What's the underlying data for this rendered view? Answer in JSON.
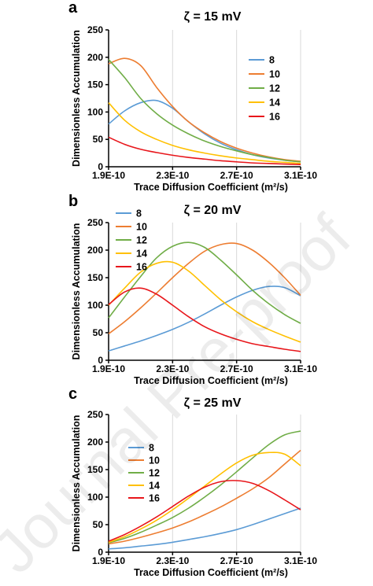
{
  "watermark": "Journal Pre-proof",
  "chart_data": [
    {
      "type": "line",
      "panel_label": "a",
      "title": "ζ = 15 mV",
      "xlabel": "Trace Diffusion Coefficient (m²/s)",
      "ylabel": "Dimensionless Accumulation",
      "xlim": [
        1.9e-10,
        3.1e-10
      ],
      "ylim": [
        0,
        250
      ],
      "xticks": [
        1.9e-10,
        2.3e-10,
        2.7e-10,
        3.1e-10
      ],
      "xtick_labels": [
        "1.9E-10",
        "2.3E-10",
        "2.7E-10",
        "3.1E-10"
      ],
      "yticks": [
        0,
        50,
        100,
        150,
        200,
        250
      ],
      "ytick_labels": [
        "0",
        "50",
        "100",
        "150",
        "200",
        "250"
      ],
      "grid": "vertical",
      "legend_position": "top-right",
      "x": [
        1.9e-10,
        2e-10,
        2.1e-10,
        2.2e-10,
        2.3e-10,
        2.4e-10,
        2.5e-10,
        2.6e-10,
        2.7e-10,
        2.8e-10,
        2.9e-10,
        3e-10,
        3.1e-10
      ],
      "series": [
        {
          "name": "8",
          "color": "#5b9bd5",
          "values": [
            78,
            102,
            117,
            121,
            107,
            82,
            60,
            43,
            31,
            22,
            16,
            12,
            9
          ]
        },
        {
          "name": "10",
          "color": "#ed7d31",
          "values": [
            188,
            198,
            185,
            145,
            110,
            82,
            62,
            46,
            34,
            25,
            18,
            13,
            10
          ]
        },
        {
          "name": "12",
          "color": "#70ad47",
          "values": [
            196,
            163,
            125,
            97,
            76,
            60,
            47,
            37,
            29,
            22,
            17,
            12,
            9
          ]
        },
        {
          "name": "14",
          "color": "#ffc000",
          "values": [
            117,
            85,
            64,
            50,
            39,
            31,
            25,
            20,
            16,
            13,
            10,
            8,
            6
          ]
        },
        {
          "name": "16",
          "color": "#e8161b",
          "values": [
            54,
            41,
            32,
            26,
            21,
            17,
            14,
            11,
            9,
            7,
            6,
            5,
            4
          ]
        }
      ]
    },
    {
      "type": "line",
      "panel_label": "b",
      "title": "ζ = 20 mV",
      "xlabel": "Trace Diffusion Coefficient (m²/s)",
      "ylabel": "Dimensionless Accumulation",
      "xlim": [
        1.9e-10,
        3.1e-10
      ],
      "ylim": [
        0,
        250
      ],
      "xticks": [
        1.9e-10,
        2.3e-10,
        2.7e-10,
        3.1e-10
      ],
      "xtick_labels": [
        "1.9E-10",
        "2.3E-10",
        "2.7E-10",
        "3.1E-10"
      ],
      "yticks": [
        0,
        50,
        100,
        150,
        200,
        250
      ],
      "ytick_labels": [
        "0",
        "50",
        "100",
        "150",
        "200",
        "250"
      ],
      "grid": "vertical",
      "legend_position": "top-left",
      "x": [
        1.9e-10,
        2e-10,
        2.1e-10,
        2.2e-10,
        2.3e-10,
        2.4e-10,
        2.5e-10,
        2.6e-10,
        2.7e-10,
        2.8e-10,
        2.9e-10,
        3e-10,
        3.1e-10
      ],
      "series": [
        {
          "name": "8",
          "color": "#5b9bd5",
          "values": [
            17,
            26,
            35,
            45,
            56,
            69,
            84,
            100,
            115,
            127,
            134,
            132,
            117
          ]
        },
        {
          "name": "10",
          "color": "#ed7d31",
          "values": [
            48,
            70,
            95,
            122,
            150,
            176,
            198,
            210,
            212,
            200,
            178,
            150,
            118
          ]
        },
        {
          "name": "12",
          "color": "#70ad47",
          "values": [
            77,
            115,
            152,
            186,
            207,
            214,
            205,
            182,
            155,
            127,
            103,
            83,
            67
          ]
        },
        {
          "name": "14",
          "color": "#ffc000",
          "values": [
            100,
            131,
            160,
            176,
            178,
            162,
            136,
            110,
            88,
            70,
            56,
            44,
            33
          ]
        },
        {
          "name": "16",
          "color": "#e8161b",
          "values": [
            101,
            124,
            131,
            120,
            100,
            79,
            61,
            48,
            38,
            30,
            25,
            20,
            16
          ]
        }
      ]
    },
    {
      "type": "line",
      "panel_label": "c",
      "title": "ζ = 25 mV",
      "xlabel": "Trace Diffusion Coefficient (m²/s)",
      "ylabel": "Dimensionless Accumulation",
      "xlim": [
        1.9e-10,
        3.1e-10
      ],
      "ylim": [
        0,
        250
      ],
      "xticks": [
        1.9e-10,
        2.3e-10,
        2.7e-10,
        3.1e-10
      ],
      "xtick_labels": [
        "1.9E-10",
        "2.3E-10",
        "2.7E-10",
        "3.1E-10"
      ],
      "yticks": [
        0,
        50,
        100,
        150,
        200,
        250
      ],
      "ytick_labels": [
        "0",
        "50",
        "100",
        "150",
        "200",
        "250"
      ],
      "grid": "vertical",
      "legend_position": "left",
      "x": [
        1.9e-10,
        2e-10,
        2.1e-10,
        2.2e-10,
        2.3e-10,
        2.4e-10,
        2.5e-10,
        2.6e-10,
        2.7e-10,
        2.8e-10,
        2.9e-10,
        3e-10,
        3.1e-10
      ],
      "series": [
        {
          "name": "8",
          "color": "#5b9bd5",
          "values": [
            6,
            8,
            11,
            14,
            18,
            23,
            28,
            34,
            41,
            50,
            60,
            70,
            80
          ]
        },
        {
          "name": "10",
          "color": "#ed7d31",
          "values": [
            15,
            20,
            27,
            35,
            44,
            55,
            68,
            82,
            98,
            115,
            135,
            160,
            185
          ]
        },
        {
          "name": "12",
          "color": "#70ad47",
          "values": [
            17,
            25,
            36,
            49,
            63,
            80,
            100,
            122,
            146,
            171,
            195,
            213,
            220
          ]
        },
        {
          "name": "14",
          "color": "#ffc000",
          "values": [
            18,
            28,
            42,
            58,
            77,
            98,
            120,
            142,
            162,
            176,
            181,
            178,
            157
          ]
        },
        {
          "name": "16",
          "color": "#e8161b",
          "values": [
            20,
            32,
            47,
            64,
            83,
            102,
            118,
            128,
            130,
            125,
            112,
            95,
            77
          ]
        }
      ]
    }
  ]
}
